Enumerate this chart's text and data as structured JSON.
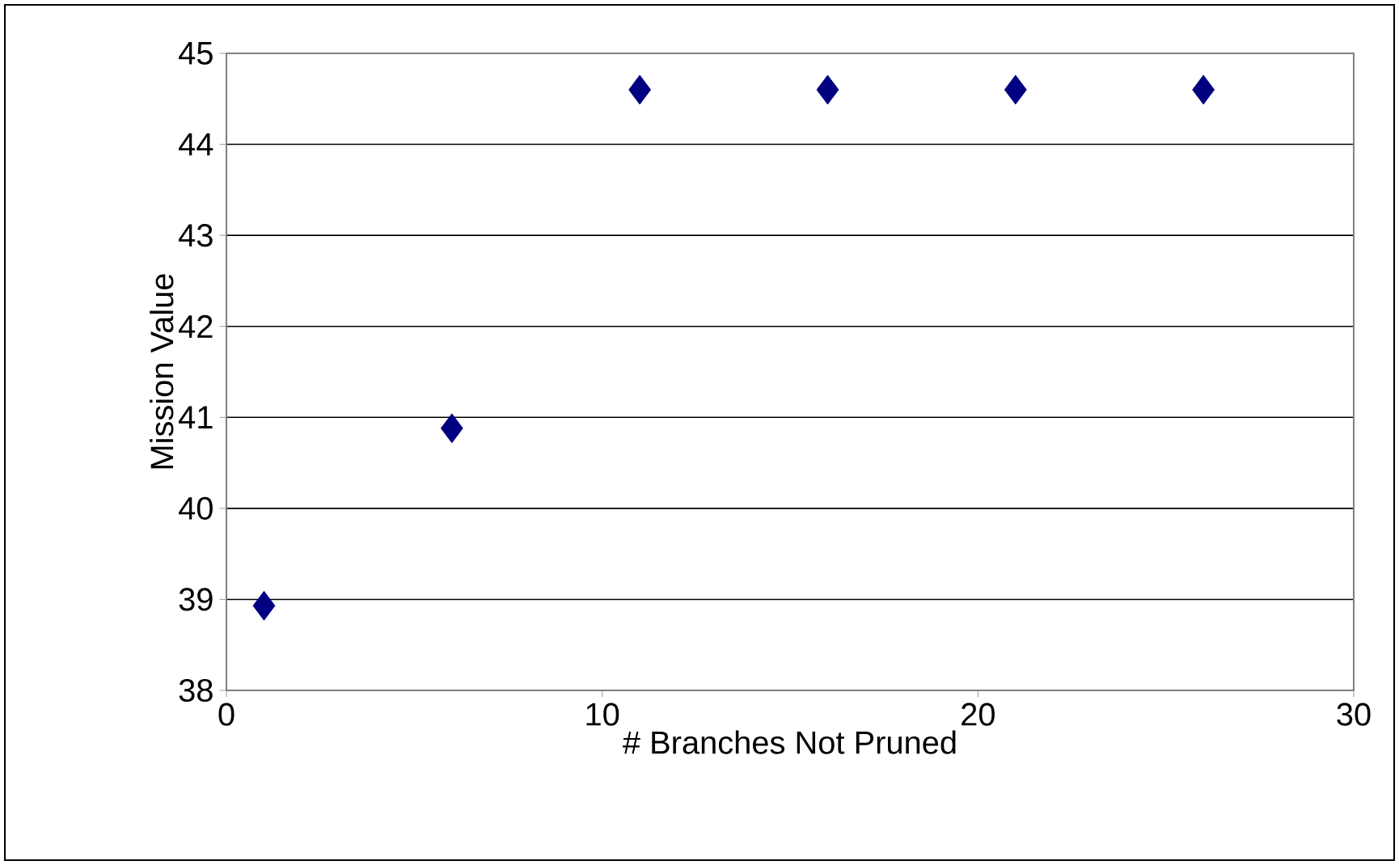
{
  "chart_data": {
    "type": "scatter",
    "xlabel": "# Branches Not Pruned",
    "ylabel": "Mission Value",
    "x": [
      1,
      6,
      11,
      16,
      21,
      26
    ],
    "values": [
      38.93,
      40.88,
      44.6,
      44.6,
      44.6,
      44.6
    ],
    "color": "#000080",
    "marker": "diamond",
    "grid": "y",
    "xlim": [
      0,
      30
    ],
    "xticks": [
      0,
      10,
      20,
      30
    ],
    "ylim": [
      38,
      45
    ],
    "yticks": [
      38,
      39,
      40,
      41,
      42,
      43,
      44,
      45
    ]
  }
}
